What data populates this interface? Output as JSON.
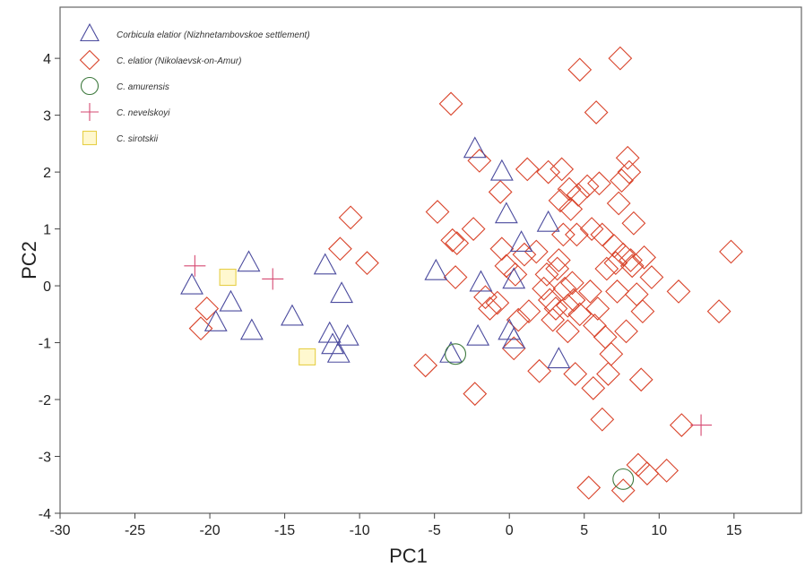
{
  "chart_data": {
    "type": "scatter",
    "xlabel": "PC1",
    "ylabel": "PC2",
    "xlim": [
      -30,
      19.5
    ],
    "ylim": [
      -4,
      4.9
    ],
    "xticks": [
      -30,
      -25,
      -20,
      -15,
      -10,
      -5,
      0,
      5,
      10,
      15
    ],
    "yticks": [
      -4,
      -3,
      -2,
      -1,
      0,
      1,
      2,
      3,
      4
    ],
    "grid": false,
    "legend_position": "top-left",
    "series": [
      {
        "name": "Corbicula elatior (Nizhnetambovskoe settlement)",
        "marker": "triangle",
        "color": "#4b4b9e",
        "points": [
          [
            -21.2,
            0.0
          ],
          [
            -19.6,
            -0.65
          ],
          [
            -18.6,
            -0.3
          ],
          [
            -17.4,
            0.4
          ],
          [
            -17.2,
            -0.8
          ],
          [
            -14.5,
            -0.55
          ],
          [
            -12.3,
            0.35
          ],
          [
            -12.0,
            -0.85
          ],
          [
            -11.8,
            -1.05
          ],
          [
            -11.4,
            -1.2
          ],
          [
            -11.2,
            -0.15
          ],
          [
            -10.8,
            -0.9
          ],
          [
            -4.9,
            0.25
          ],
          [
            -3.9,
            -1.2
          ],
          [
            -2.3,
            2.4
          ],
          [
            -2.1,
            -0.9
          ],
          [
            -1.9,
            0.05
          ],
          [
            -0.5,
            2.0
          ],
          [
            -0.2,
            1.25
          ],
          [
            0.0,
            -0.8
          ],
          [
            0.3,
            0.1
          ],
          [
            0.3,
            -0.95
          ],
          [
            0.8,
            0.75
          ],
          [
            2.6,
            1.1
          ],
          [
            3.3,
            -1.3
          ]
        ]
      },
      {
        "name": "C. elatior (Nikolaevsk-on-Amur)",
        "marker": "diamond",
        "color": "#d9442b",
        "points": [
          [
            -20.6,
            -0.75
          ],
          [
            -20.2,
            -0.4
          ],
          [
            -11.3,
            0.65
          ],
          [
            -10.6,
            1.2
          ],
          [
            -9.5,
            0.4
          ],
          [
            -5.6,
            -1.4
          ],
          [
            -4.8,
            1.3
          ],
          [
            -3.9,
            3.2
          ],
          [
            -3.8,
            0.8
          ],
          [
            -3.6,
            0.15
          ],
          [
            -3.5,
            0.75
          ],
          [
            -2.4,
            1.0
          ],
          [
            -2.3,
            -1.9
          ],
          [
            -2.0,
            2.2
          ],
          [
            -1.6,
            -0.2
          ],
          [
            -1.3,
            -0.4
          ],
          [
            -0.8,
            -0.3
          ],
          [
            -0.6,
            1.65
          ],
          [
            -0.5,
            0.65
          ],
          [
            -0.2,
            0.35
          ],
          [
            0.3,
            -1.1
          ],
          [
            0.4,
            0.2
          ],
          [
            0.6,
            -0.6
          ],
          [
            1.0,
            0.55
          ],
          [
            1.2,
            2.05
          ],
          [
            1.3,
            -0.45
          ],
          [
            1.8,
            0.6
          ],
          [
            2.0,
            -1.5
          ],
          [
            2.3,
            -0.05
          ],
          [
            2.5,
            0.2
          ],
          [
            2.6,
            2.0
          ],
          [
            2.7,
            -0.25
          ],
          [
            2.9,
            -0.6
          ],
          [
            3.1,
            -0.4
          ],
          [
            3.2,
            0.3
          ],
          [
            3.3,
            0.45
          ],
          [
            3.4,
            1.5
          ],
          [
            3.5,
            2.05
          ],
          [
            3.6,
            0.9
          ],
          [
            3.7,
            -0.05
          ],
          [
            3.9,
            -0.35
          ],
          [
            3.9,
            -0.8
          ],
          [
            4.0,
            1.7
          ],
          [
            4.1,
            1.35
          ],
          [
            4.2,
            0.05
          ],
          [
            4.3,
            -0.25
          ],
          [
            4.4,
            -1.55
          ],
          [
            4.5,
            0.9
          ],
          [
            4.6,
            1.6
          ],
          [
            4.7,
            -0.5
          ],
          [
            4.7,
            3.8
          ],
          [
            5.2,
            1.75
          ],
          [
            5.4,
            -0.1
          ],
          [
            5.5,
            1.0
          ],
          [
            5.6,
            -1.8
          ],
          [
            5.7,
            -0.7
          ],
          [
            5.8,
            3.05
          ],
          [
            5.9,
            -0.4
          ],
          [
            6.0,
            1.8
          ],
          [
            6.2,
            0.9
          ],
          [
            6.2,
            -2.35
          ],
          [
            6.4,
            -0.9
          ],
          [
            6.5,
            0.3
          ],
          [
            6.8,
            -1.2
          ],
          [
            7.0,
            0.7
          ],
          [
            7.1,
            0.4
          ],
          [
            7.2,
            -0.1
          ],
          [
            7.3,
            1.45
          ],
          [
            7.4,
            4.0
          ],
          [
            7.5,
            1.85
          ],
          [
            7.6,
            0.55
          ],
          [
            7.8,
            -0.8
          ],
          [
            7.9,
            2.25
          ],
          [
            8.0,
            2.0
          ],
          [
            8.1,
            0.45
          ],
          [
            8.2,
            0.35
          ],
          [
            8.3,
            1.1
          ],
          [
            8.5,
            -0.15
          ],
          [
            8.8,
            -1.65
          ],
          [
            8.9,
            -0.45
          ],
          [
            9.0,
            0.5
          ],
          [
            9.5,
            0.15
          ],
          [
            8.6,
            -3.15
          ],
          [
            9.2,
            -3.3
          ],
          [
            10.5,
            -3.25
          ],
          [
            11.3,
            -0.1
          ],
          [
            11.5,
            -2.45
          ],
          [
            14.0,
            -0.45
          ],
          [
            14.8,
            0.6
          ],
          [
            5.3,
            -3.55
          ],
          [
            7.6,
            -3.6
          ],
          [
            6.6,
            -1.55
          ]
        ]
      },
      {
        "name": "C. amurensis",
        "marker": "circle",
        "color": "#3f7a3f",
        "points": [
          [
            -3.6,
            -1.2
          ],
          [
            7.6,
            -3.4
          ]
        ]
      },
      {
        "name": "C. nevelskoyi",
        "marker": "plus",
        "color": "#d64a72",
        "points": [
          [
            -21.0,
            0.35
          ],
          [
            -15.8,
            0.12
          ],
          [
            12.8,
            -2.45
          ]
        ]
      },
      {
        "name": "C. sirotskii",
        "marker": "square",
        "color": "#e6cf47",
        "points": [
          [
            -18.8,
            0.15
          ],
          [
            -13.5,
            -1.25
          ]
        ]
      }
    ]
  }
}
